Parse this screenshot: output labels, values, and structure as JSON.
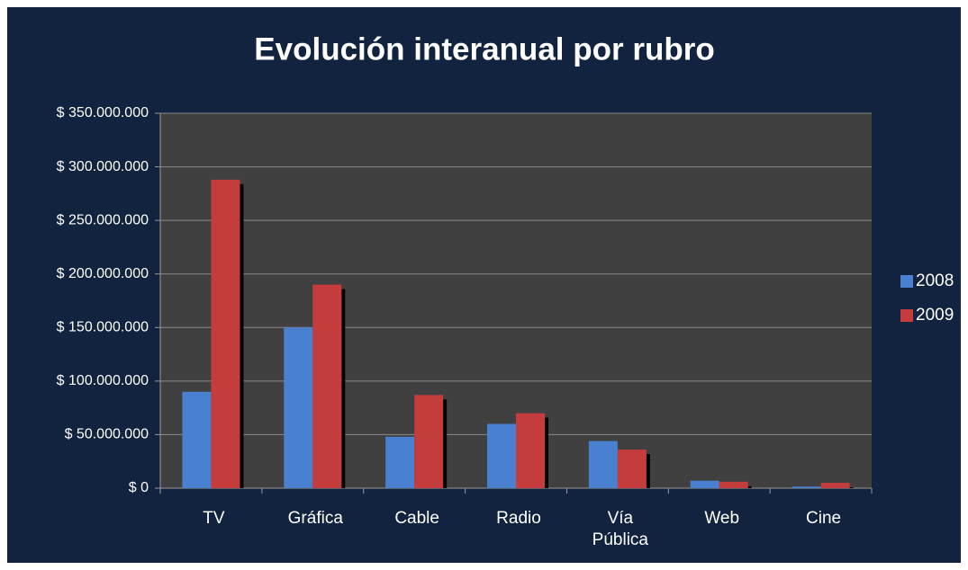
{
  "chart_data": {
    "type": "bar",
    "title": "Evolución interanual por rubro",
    "categories": [
      "TV",
      "Gráfica",
      "Cable",
      "Radio",
      "Vía Pública",
      "Web",
      "Cine"
    ],
    "series": [
      {
        "name": "2008",
        "color": "#4a80d0",
        "values": [
          90000000,
          150000000,
          48000000,
          60000000,
          44000000,
          7000000,
          1500000
        ]
      },
      {
        "name": "2009",
        "color": "#c43c3c",
        "values": [
          288000000,
          190000000,
          87000000,
          70000000,
          36000000,
          6000000,
          5000000
        ]
      }
    ],
    "ylim": [
      0,
      350000000
    ],
    "yticks": [
      {
        "value": 0,
        "label": "$ 0"
      },
      {
        "value": 50000000,
        "label": "$ 50.000.000"
      },
      {
        "value": 100000000,
        "label": "$ 100.000.000"
      },
      {
        "value": 150000000,
        "label": "$ 150.000.000"
      },
      {
        "value": 200000000,
        "label": "$ 200.000.000"
      },
      {
        "value": 250000000,
        "label": "$ 250.000.000"
      },
      {
        "value": 300000000,
        "label": "$ 300.000.000"
      },
      {
        "value": 350000000,
        "label": "$ 350.000.000"
      }
    ],
    "grid": true,
    "legend": "right"
  }
}
